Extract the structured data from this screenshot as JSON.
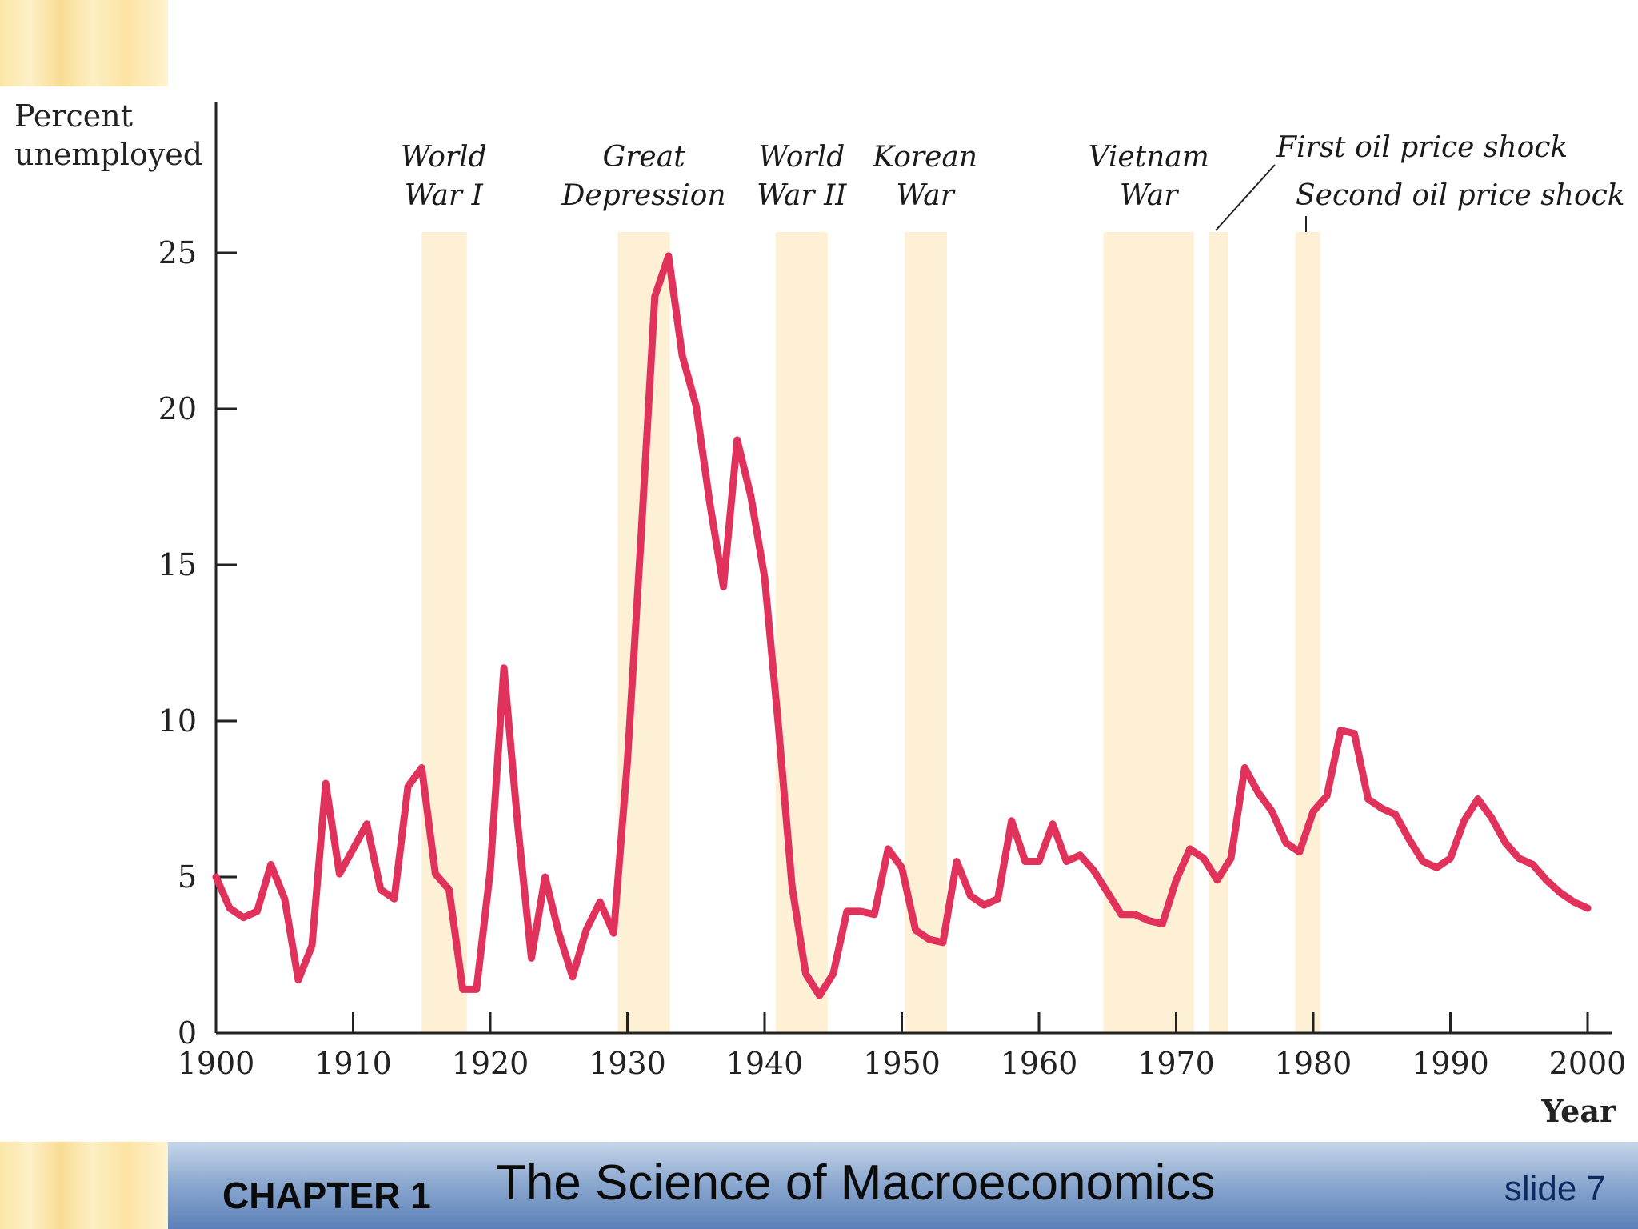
{
  "chart_data": {
    "type": "line",
    "ylabel_lines": [
      "Percent",
      "unemployed"
    ],
    "xlabel": "Year",
    "xlim": [
      1900,
      2003
    ],
    "ylim": [
      0,
      27
    ],
    "x_ticks": [
      1900,
      1910,
      1920,
      1930,
      1940,
      1950,
      1960,
      1970,
      1980,
      1990,
      2000
    ],
    "y_ticks": [
      0,
      5,
      10,
      15,
      20,
      25
    ],
    "line_color": "#e0325a",
    "band_color": "#fdf0d5",
    "series": [
      {
        "x": [
          1900,
          1901,
          1902,
          1903,
          1904,
          1905,
          1906,
          1907,
          1908,
          1909,
          1910,
          1911,
          1912,
          1913,
          1914,
          1915,
          1916,
          1917,
          1918,
          1919,
          1920,
          1921,
          1922,
          1923,
          1924,
          1925,
          1926,
          1927,
          1928,
          1929,
          1930,
          1931,
          1932,
          1933,
          1934,
          1935,
          1936,
          1937,
          1938,
          1939,
          1940,
          1941,
          1942,
          1943,
          1944,
          1945,
          1946,
          1947,
          1948,
          1949,
          1950,
          1951,
          1952,
          1953,
          1954,
          1955,
          1956,
          1957,
          1958,
          1959,
          1960,
          1961,
          1962,
          1963,
          1964,
          1965,
          1966,
          1967,
          1968,
          1969,
          1970,
          1971,
          1972,
          1973,
          1974,
          1975,
          1976,
          1977,
          1978,
          1979,
          1980,
          1981,
          1982,
          1983,
          1984,
          1985,
          1986,
          1987,
          1988,
          1989,
          1990,
          1991,
          1992,
          1993,
          1994,
          1995,
          1996,
          1997,
          1998,
          1999,
          2000
        ],
        "values": [
          5.0,
          4.0,
          3.7,
          3.9,
          5.4,
          4.3,
          1.7,
          2.8,
          8.0,
          5.1,
          5.9,
          6.7,
          4.6,
          4.3,
          7.9,
          8.5,
          5.1,
          4.6,
          1.4,
          1.4,
          5.2,
          11.7,
          6.7,
          2.4,
          5.0,
          3.2,
          1.8,
          3.3,
          4.2,
          3.2,
          8.7,
          15.9,
          23.6,
          24.9,
          21.7,
          20.1,
          17.0,
          14.3,
          19.0,
          17.2,
          14.6,
          9.9,
          4.7,
          1.9,
          1.2,
          1.9,
          3.9,
          3.9,
          3.8,
          5.9,
          5.3,
          3.3,
          3.0,
          2.9,
          5.5,
          4.4,
          4.1,
          4.3,
          6.8,
          5.5,
          5.5,
          6.7,
          5.5,
          5.7,
          5.2,
          4.5,
          3.8,
          3.8,
          3.6,
          3.5,
          4.9,
          5.9,
          5.6,
          4.9,
          5.6,
          8.5,
          7.7,
          7.1,
          6.1,
          5.8,
          7.1,
          7.6,
          9.7,
          9.6,
          7.5,
          7.2,
          7.0,
          6.2,
          5.5,
          5.3,
          5.6,
          6.8,
          7.5,
          6.9,
          6.1,
          5.6,
          5.4,
          4.9,
          4.5,
          4.2,
          4.0
        ]
      }
    ],
    "events": [
      {
        "label_lines": [
          "World",
          "War I"
        ],
        "start": 1915,
        "end": 1918.3
      },
      {
        "label_lines": [
          "Great",
          "Depression"
        ],
        "start": 1929.3,
        "end": 1933.1
      },
      {
        "label_lines": [
          "World",
          "War II"
        ],
        "start": 1940.8,
        "end": 1944.6
      },
      {
        "label_lines": [
          "Korean",
          "War"
        ],
        "start": 1950.2,
        "end": 1953.3
      },
      {
        "label_lines": [
          "Vietnam",
          "War"
        ],
        "start": 1964.7,
        "end": 1971.3
      },
      {
        "label_lines": [
          "First oil price shock"
        ],
        "start": 1972.4,
        "end": 1973.8
      },
      {
        "label_lines": [
          "Second oil price shock"
        ],
        "start": 1978.7,
        "end": 1980.5
      }
    ]
  },
  "footer": {
    "chapter_label": "CHAPTER 1",
    "chapter_title": "The Science of Macroeconomics",
    "slide_number": "slide 7"
  }
}
